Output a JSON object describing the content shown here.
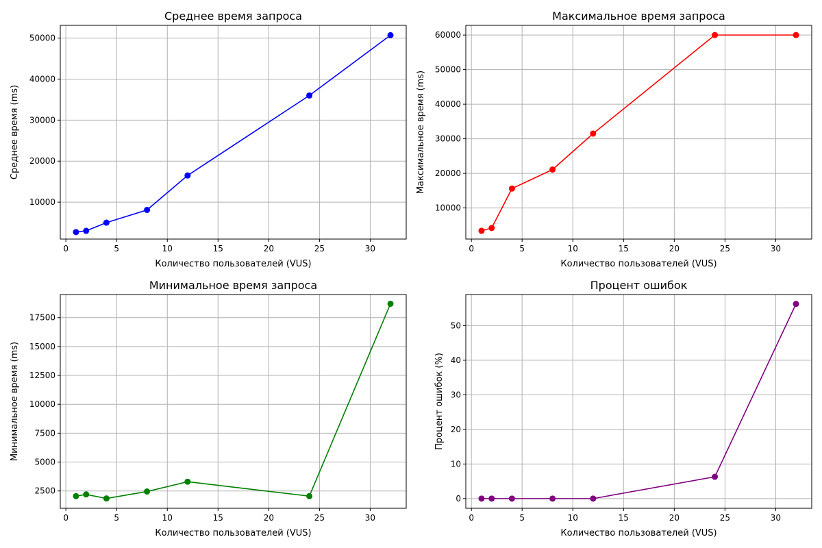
{
  "figure": {
    "background": "#ffffff"
  },
  "chart_data": [
    {
      "type": "line",
      "title": "Среднее время запроса",
      "xlabel": "Количество пользователей (VUS)",
      "ylabel": "Среднее время (ms)",
      "x": [
        1,
        2,
        4,
        8,
        12,
        24,
        32
      ],
      "series": [
        {
          "values": [
            2700,
            3000,
            5000,
            8100,
            16500,
            36000,
            50700
          ],
          "color": "#0000ff"
        }
      ],
      "xlim": [
        -0.55,
        33.55
      ],
      "ylim": [
        1000,
        53100
      ],
      "xticks": [
        0,
        5,
        10,
        15,
        20,
        25,
        30
      ],
      "yticks": [
        10000,
        20000,
        30000,
        40000,
        50000
      ],
      "grid": true,
      "legend": "none"
    },
    {
      "type": "line",
      "title": "Максимальное время запроса",
      "xlabel": "Количество пользователей (VUS)",
      "ylabel": "Максимальное время (ms)",
      "x": [
        1,
        2,
        4,
        8,
        12,
        24,
        32
      ],
      "series": [
        {
          "values": [
            3400,
            4200,
            15600,
            21100,
            31500,
            60000,
            60000
          ],
          "color": "#ff0000"
        }
      ],
      "xlim": [
        -0.55,
        33.55
      ],
      "ylim": [
        1000,
        62800
      ],
      "xticks": [
        0,
        5,
        10,
        15,
        20,
        25,
        30
      ],
      "yticks": [
        10000,
        20000,
        30000,
        40000,
        50000,
        60000
      ],
      "grid": true,
      "legend": "none"
    },
    {
      "type": "line",
      "title": "Минимальное время запроса",
      "xlabel": "Количество пользователей (VUS)",
      "ylabel": "Минимальное время (ms)",
      "x": [
        1,
        2,
        4,
        8,
        12,
        24,
        32
      ],
      "series": [
        {
          "values": [
            2050,
            2200,
            1850,
            2450,
            3300,
            2050,
            18700
          ],
          "color": "#008000"
        }
      ],
      "xlim": [
        -0.55,
        33.55
      ],
      "ylim": [
        1000,
        19500
      ],
      "xticks": [
        0,
        5,
        10,
        15,
        20,
        25,
        30
      ],
      "yticks": [
        2500,
        5000,
        7500,
        10000,
        12500,
        15000,
        17500
      ],
      "grid": true,
      "legend": "none"
    },
    {
      "type": "line",
      "title": "Процент ошибок",
      "xlabel": "Количество пользователей (VUS)",
      "ylabel": "Процент ошибок (%)",
      "x": [
        1,
        2,
        4,
        8,
        12,
        24,
        32
      ],
      "series": [
        {
          "values": [
            0,
            0,
            0,
            0,
            0,
            6.3,
            56.3
          ],
          "color": "#800080"
        }
      ],
      "xlim": [
        -0.55,
        33.55
      ],
      "ylim": [
        -2.8,
        59.0
      ],
      "xticks": [
        0,
        5,
        10,
        15,
        20,
        25,
        30
      ],
      "yticks": [
        0,
        10,
        20,
        30,
        40,
        50
      ],
      "grid": true,
      "legend": "none"
    }
  ]
}
